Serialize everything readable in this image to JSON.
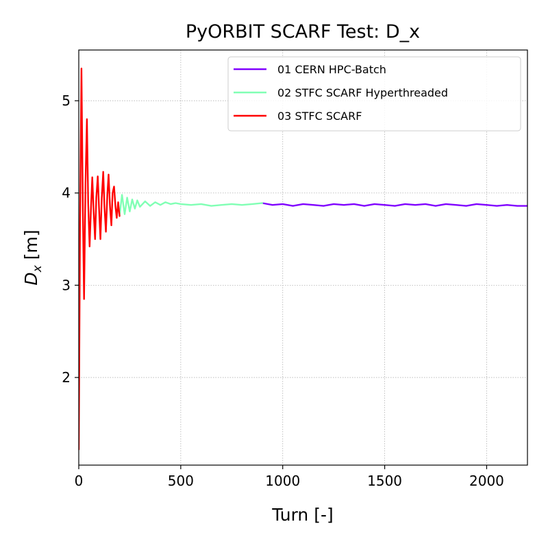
{
  "chart_data": {
    "type": "line",
    "title": "PyORBIT SCARF Test: D_x",
    "xlabel": "Turn [-]",
    "ylabel_main": "D",
    "ylabel_sub": "x",
    "ylabel_unit": " [m]",
    "xlim": [
      0,
      2200
    ],
    "ylim": [
      1.05,
      5.55
    ],
    "xticks": [
      0,
      500,
      1000,
      1500,
      2000
    ],
    "yticks": [
      2,
      3,
      4,
      5
    ],
    "grid": true,
    "legend_position": "upper-right",
    "series": [
      {
        "name": "01 CERN HPC-Batch",
        "color": "#8000ff",
        "x": [
          900,
          950,
          1000,
          1050,
          1100,
          1150,
          1200,
          1250,
          1300,
          1350,
          1400,
          1450,
          1500,
          1550,
          1600,
          1650,
          1700,
          1750,
          1800,
          1850,
          1900,
          1950,
          2000,
          2050,
          2100,
          2150,
          2200
        ],
        "y": [
          3.89,
          3.87,
          3.88,
          3.86,
          3.88,
          3.87,
          3.86,
          3.88,
          3.87,
          3.88,
          3.86,
          3.88,
          3.87,
          3.86,
          3.88,
          3.87,
          3.88,
          3.86,
          3.88,
          3.87,
          3.86,
          3.88,
          3.87,
          3.86,
          3.87,
          3.86,
          3.86
        ]
      },
      {
        "name": "02 STFC SCARF Hyperthreaded",
        "color": "#80ffb4",
        "x": [
          200,
          212,
          225,
          237,
          250,
          262,
          275,
          287,
          300,
          325,
          350,
          375,
          400,
          425,
          450,
          475,
          500,
          550,
          600,
          650,
          700,
          750,
          800,
          850,
          900
        ],
        "y": [
          3.75,
          3.98,
          3.77,
          3.95,
          3.8,
          3.93,
          3.83,
          3.92,
          3.85,
          3.91,
          3.86,
          3.9,
          3.87,
          3.9,
          3.88,
          3.89,
          3.88,
          3.87,
          3.88,
          3.86,
          3.87,
          3.88,
          3.87,
          3.88,
          3.89
        ]
      },
      {
        "name": "03 STFC SCARF",
        "color": "#ff0000",
        "x": [
          0,
          6,
          13,
          20,
          26,
          33,
          40,
          46,
          53,
          60,
          66,
          73,
          80,
          86,
          93,
          100,
          106,
          113,
          120,
          126,
          133,
          140,
          146,
          153,
          160,
          166,
          173,
          180,
          186,
          193,
          200
        ],
        "y": [
          1.22,
          3.6,
          5.35,
          3.8,
          2.85,
          4.1,
          4.8,
          3.9,
          3.42,
          3.85,
          4.17,
          3.8,
          3.5,
          3.95,
          4.18,
          3.8,
          3.5,
          3.95,
          4.23,
          3.85,
          3.58,
          3.98,
          4.2,
          3.85,
          3.65,
          4.0,
          4.07,
          3.85,
          3.73,
          3.9,
          3.75
        ]
      }
    ]
  }
}
